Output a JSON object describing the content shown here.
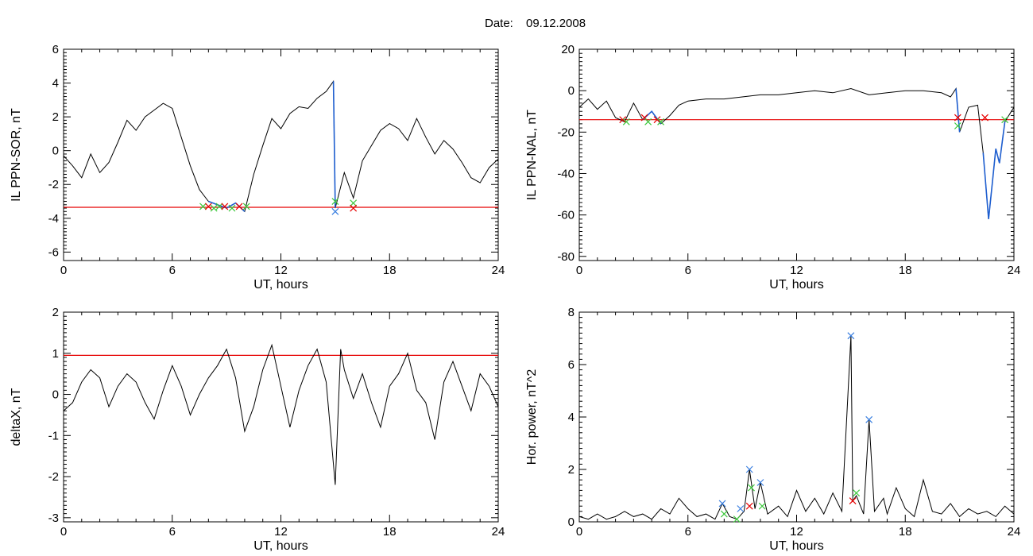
{
  "header": {
    "date_label": "Date:",
    "date_value": "09.12.2008"
  },
  "colors": {
    "line": "#000000",
    "threshold": "#e60000",
    "highlight": "#1f5fd0",
    "mark_red": "#e60000",
    "mark_green": "#3cc83c",
    "mark_blue": "#3a7fe0"
  },
  "chart_data": [
    {
      "type": "line",
      "title": "",
      "xlabel": "UT, hours",
      "ylabel": "IL PPN-SOR, nT",
      "xlim": [
        0,
        24
      ],
      "ylim": [
        -6.5,
        6
      ],
      "xticks": [
        0,
        6,
        12,
        18,
        24
      ],
      "yticks": [
        -6,
        -4,
        -2,
        0,
        2,
        4,
        6
      ],
      "threshold": -3.35,
      "x": [
        0,
        0.5,
        1,
        1.5,
        2,
        2.5,
        3,
        3.5,
        4,
        4.5,
        5,
        5.5,
        6,
        6.5,
        7,
        7.5,
        8,
        8.5,
        9,
        9.5,
        10,
        10.5,
        11,
        11.5,
        12,
        12.5,
        13,
        13.5,
        14,
        14.5,
        14.9,
        15,
        15.5,
        16,
        16.5,
        17,
        17.5,
        18,
        18.5,
        19,
        19.5,
        20,
        20.5,
        21,
        21.5,
        22,
        22.5,
        23,
        23.5,
        24
      ],
      "values": [
        -0.3,
        -0.9,
        -1.6,
        -0.2,
        -1.3,
        -0.7,
        0.5,
        1.8,
        1.2,
        2.0,
        2.4,
        2.8,
        2.5,
        0.8,
        -0.9,
        -2.3,
        -3.0,
        -3.2,
        -3.4,
        -3.1,
        -3.6,
        -1.4,
        0.3,
        1.9,
        1.3,
        2.2,
        2.6,
        2.5,
        3.1,
        3.5,
        4.1,
        -3.4,
        -1.3,
        -2.8,
        -0.6,
        0.3,
        1.2,
        1.6,
        1.3,
        0.6,
        1.9,
        0.8,
        -0.2,
        0.6,
        0.1,
        -0.7,
        -1.6,
        -1.9,
        -1.0,
        -0.5
      ],
      "highlight_ranges": [
        [
          7.6,
          10.2
        ],
        [
          14.9,
          15.1
        ]
      ],
      "markers": [
        {
          "x": 7.7,
          "y": -3.3,
          "color": "green"
        },
        {
          "x": 8.0,
          "y": -3.3,
          "color": "red"
        },
        {
          "x": 8.3,
          "y": -3.4,
          "color": "green"
        },
        {
          "x": 8.6,
          "y": -3.3,
          "color": "green"
        },
        {
          "x": 8.9,
          "y": -3.3,
          "color": "red"
        },
        {
          "x": 9.3,
          "y": -3.4,
          "color": "green"
        },
        {
          "x": 9.7,
          "y": -3.3,
          "color": "red"
        },
        {
          "x": 10.1,
          "y": -3.3,
          "color": "green"
        },
        {
          "x": 15.0,
          "y": -3.0,
          "color": "green"
        },
        {
          "x": 15.0,
          "y": -3.6,
          "color": "blue"
        },
        {
          "x": 16.0,
          "y": -3.1,
          "color": "green"
        },
        {
          "x": 16.0,
          "y": -3.4,
          "color": "red"
        }
      ]
    },
    {
      "type": "line",
      "title": "",
      "xlabel": "UT, hours",
      "ylabel": "IL PPN-NAL, nT",
      "xlim": [
        0,
        24
      ],
      "ylim": [
        -82,
        20
      ],
      "xticks": [
        0,
        6,
        12,
        18,
        24
      ],
      "yticks": [
        -80,
        -60,
        -40,
        -20,
        0,
        20
      ],
      "threshold": -14,
      "x": [
        0,
        0.5,
        1,
        1.5,
        2,
        2.5,
        3,
        3.5,
        4,
        4.5,
        5,
        5.5,
        6,
        7,
        8,
        9,
        10,
        11,
        12,
        13,
        14,
        15,
        16,
        17,
        18,
        19,
        20,
        20.5,
        20.8,
        21,
        21.5,
        22,
        22.3,
        22.6,
        22.8,
        23,
        23.2,
        23.5,
        24
      ],
      "values": [
        -8,
        -4,
        -9,
        -5,
        -13,
        -15,
        -6,
        -14,
        -10,
        -16,
        -12,
        -7,
        -5,
        -4,
        -4,
        -3,
        -2,
        -2,
        -1,
        0,
        -1,
        1,
        -2,
        -1,
        0,
        0,
        -1,
        -3,
        1,
        -20,
        -8,
        -7,
        -30,
        -62,
        -45,
        -28,
        -35,
        -15,
        -8
      ],
      "highlight_ranges": [
        [
          2.2,
          2.8
        ],
        [
          3.5,
          4.8
        ],
        [
          20.8,
          21.0
        ],
        [
          22.2,
          23.6
        ]
      ],
      "markers": [
        {
          "x": 2.4,
          "y": -14,
          "color": "red"
        },
        {
          "x": 2.6,
          "y": -15,
          "color": "green"
        },
        {
          "x": 3.6,
          "y": -13,
          "color": "red"
        },
        {
          "x": 3.8,
          "y": -15,
          "color": "green"
        },
        {
          "x": 4.3,
          "y": -14,
          "color": "red"
        },
        {
          "x": 4.5,
          "y": -15,
          "color": "green"
        },
        {
          "x": 20.9,
          "y": -13,
          "color": "red"
        },
        {
          "x": 20.9,
          "y": -17,
          "color": "green"
        },
        {
          "x": 22.4,
          "y": -13,
          "color": "red"
        },
        {
          "x": 23.5,
          "y": -14,
          "color": "green"
        }
      ]
    },
    {
      "type": "line",
      "title": "",
      "xlabel": "UT, hours",
      "ylabel": "deltaX, nT",
      "xlim": [
        0,
        24
      ],
      "ylim": [
        -3.1,
        2
      ],
      "xticks": [
        0,
        6,
        12,
        18,
        24
      ],
      "yticks": [
        -3,
        -2,
        -1,
        0,
        1,
        2
      ],
      "threshold": 0.95,
      "x": [
        0,
        0.5,
        1,
        1.5,
        2,
        2.5,
        3,
        3.5,
        4,
        4.5,
        5,
        5.5,
        6,
        6.5,
        7,
        7.5,
        8,
        8.5,
        9,
        9.5,
        10,
        10.5,
        11,
        11.5,
        12,
        12.5,
        13,
        13.5,
        14,
        14.5,
        15,
        15.3,
        15.5,
        16,
        16.5,
        17,
        17.5,
        18,
        18.5,
        19,
        19.5,
        20,
        20.5,
        21,
        21.5,
        22,
        22.5,
        23,
        23.5,
        24
      ],
      "values": [
        -0.4,
        -0.2,
        0.3,
        0.6,
        0.4,
        -0.3,
        0.2,
        0.5,
        0.3,
        -0.2,
        -0.6,
        0.1,
        0.7,
        0.2,
        -0.5,
        0.0,
        0.4,
        0.7,
        1.1,
        0.4,
        -0.9,
        -0.3,
        0.6,
        1.2,
        0.2,
        -0.8,
        0.1,
        0.7,
        1.1,
        0.3,
        -2.2,
        1.1,
        0.6,
        -0.1,
        0.5,
        -0.2,
        -0.8,
        0.2,
        0.5,
        1.0,
        0.1,
        -0.2,
        -1.1,
        0.3,
        0.8,
        0.2,
        -0.4,
        0.5,
        0.2,
        -0.3
      ],
      "highlight_ranges": [],
      "markers": []
    },
    {
      "type": "line",
      "title": "",
      "xlabel": "UT, hours",
      "ylabel": "Hor. power, nT^2",
      "xlim": [
        0,
        24
      ],
      "ylim": [
        0,
        8
      ],
      "xticks": [
        0,
        6,
        12,
        18,
        24
      ],
      "yticks": [
        0,
        2,
        4,
        6,
        8
      ],
      "threshold": null,
      "x": [
        0,
        0.5,
        1,
        1.5,
        2,
        2.5,
        3,
        3.5,
        4,
        4.5,
        5,
        5.5,
        6,
        6.5,
        7,
        7.5,
        7.9,
        8.3,
        8.7,
        9.1,
        9.4,
        9.7,
        10.0,
        10.4,
        11,
        11.5,
        12,
        12.5,
        13,
        13.5,
        14,
        14.5,
        15.0,
        15.1,
        15.3,
        15.7,
        16.0,
        16.3,
        16.8,
        17,
        17.5,
        18,
        18.5,
        19,
        19.5,
        20,
        20.5,
        21,
        21.5,
        22,
        22.5,
        23,
        23.5,
        24
      ],
      "values": [
        0.2,
        0.1,
        0.3,
        0.1,
        0.2,
        0.4,
        0.2,
        0.3,
        0.1,
        0.5,
        0.3,
        0.9,
        0.5,
        0.2,
        0.3,
        0.1,
        0.7,
        0.2,
        0.1,
        0.4,
        2.0,
        0.5,
        1.5,
        0.3,
        0.6,
        0.2,
        1.2,
        0.4,
        0.9,
        0.3,
        1.1,
        0.4,
        7.1,
        0.8,
        1.0,
        0.3,
        3.9,
        0.4,
        0.9,
        0.3,
        1.3,
        0.5,
        0.2,
        1.6,
        0.4,
        0.3,
        0.7,
        0.2,
        0.5,
        0.3,
        0.4,
        0.2,
        0.6,
        0.3
      ],
      "highlight_ranges": [],
      "markers": [
        {
          "x": 7.9,
          "y": 0.7,
          "color": "blue"
        },
        {
          "x": 8.0,
          "y": 0.3,
          "color": "green"
        },
        {
          "x": 8.7,
          "y": 0.1,
          "color": "green"
        },
        {
          "x": 8.9,
          "y": 0.5,
          "color": "blue"
        },
        {
          "x": 9.4,
          "y": 2.0,
          "color": "blue"
        },
        {
          "x": 9.5,
          "y": 1.3,
          "color": "green"
        },
        {
          "x": 9.4,
          "y": 0.6,
          "color": "red"
        },
        {
          "x": 10.0,
          "y": 1.5,
          "color": "blue"
        },
        {
          "x": 10.1,
          "y": 0.6,
          "color": "green"
        },
        {
          "x": 15.0,
          "y": 7.1,
          "color": "blue"
        },
        {
          "x": 15.3,
          "y": 1.1,
          "color": "green"
        },
        {
          "x": 15.1,
          "y": 0.8,
          "color": "red"
        },
        {
          "x": 16.0,
          "y": 3.9,
          "color": "blue"
        }
      ]
    }
  ]
}
